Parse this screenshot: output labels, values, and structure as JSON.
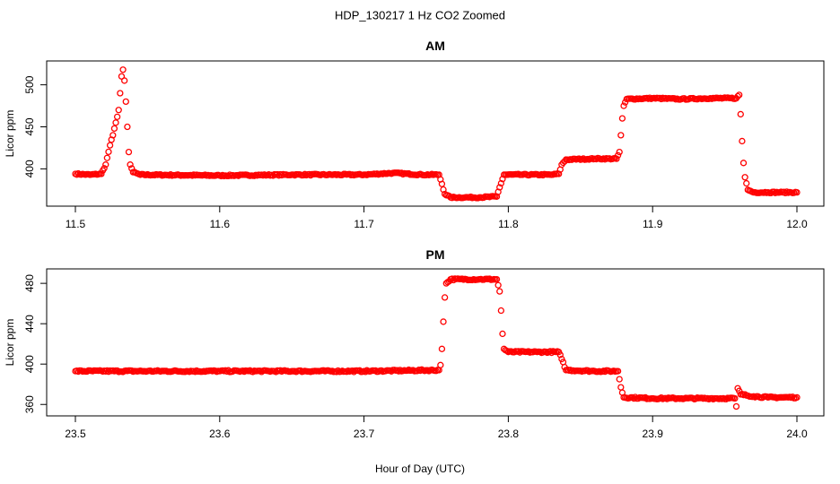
{
  "figure_title": "HDP_130217  1 Hz CO2 Zoomed",
  "colors": {
    "points": "#ff0000",
    "axes": "#000000",
    "background": "#ffffff"
  },
  "chart_data": [
    {
      "type": "scatter",
      "title": "AM",
      "xlabel": "",
      "ylabel": "Licor ppm",
      "xlim": [
        11.5,
        12.0
      ],
      "ylim": [
        362,
        522
      ],
      "x_ticks": [
        11.5,
        11.6,
        11.7,
        11.8,
        11.9,
        12.0
      ],
      "x_tick_labels": [
        "11.5",
        "11.6",
        "11.7",
        "11.8",
        "11.9",
        "12.0"
      ],
      "y_ticks": [
        400,
        450,
        500
      ],
      "y_tick_labels": [
        "400",
        "450",
        "500"
      ],
      "grid": false,
      "marker": "open-circle",
      "series": [
        {
          "color": "#ff0000",
          "points": [
            [
              11.5,
              394
            ],
            [
              11.51,
              393
            ],
            [
              11.518,
              394
            ],
            [
              11.521,
              405
            ],
            [
              11.524,
              428
            ],
            [
              11.526,
              440
            ],
            [
              11.528,
              455
            ],
            [
              11.53,
              470
            ],
            [
              11.531,
              490
            ],
            [
              11.532,
              510
            ],
            [
              11.533,
              518
            ],
            [
              11.534,
              505
            ],
            [
              11.535,
              480
            ],
            [
              11.536,
              450
            ],
            [
              11.537,
              420
            ],
            [
              11.538,
              405
            ],
            [
              11.54,
              396
            ],
            [
              11.545,
              393
            ],
            [
              11.6,
              392
            ],
            [
              11.65,
              393
            ],
            [
              11.7,
              393
            ],
            [
              11.72,
              395
            ],
            [
              11.74,
              393
            ],
            [
              11.752,
              393
            ],
            [
              11.754,
              382
            ],
            [
              11.756,
              370
            ],
            [
              11.76,
              366
            ],
            [
              11.77,
              366
            ],
            [
              11.78,
              366
            ],
            [
              11.792,
              367
            ],
            [
              11.794,
              378
            ],
            [
              11.797,
              393
            ],
            [
              11.81,
              393
            ],
            [
              11.83,
              393
            ],
            [
              11.835,
              394
            ],
            [
              11.837,
              405
            ],
            [
              11.84,
              411
            ],
            [
              11.86,
              412
            ],
            [
              11.875,
              412
            ],
            [
              11.877,
              420
            ],
            [
              11.878,
              440
            ],
            [
              11.879,
              460
            ],
            [
              11.88,
              475
            ],
            [
              11.882,
              483
            ],
            [
              11.9,
              484
            ],
            [
              11.92,
              483
            ],
            [
              11.94,
              484
            ],
            [
              11.958,
              484
            ],
            [
              11.96,
              488
            ],
            [
              11.961,
              465
            ],
            [
              11.962,
              433
            ],
            [
              11.963,
              407
            ],
            [
              11.964,
              390
            ],
            [
              11.966,
              375
            ],
            [
              11.97,
              372
            ],
            [
              11.98,
              372
            ],
            [
              11.99,
              372
            ],
            [
              12.0,
              372
            ]
          ]
        }
      ]
    },
    {
      "type": "scatter",
      "title": "PM",
      "xlabel": "Hour of Day (UTC)",
      "ylabel": "Licor ppm",
      "xlim": [
        23.5,
        24.0
      ],
      "ylim": [
        354,
        489
      ],
      "x_ticks": [
        23.5,
        23.6,
        23.7,
        23.8,
        23.9,
        24.0
      ],
      "x_tick_labels": [
        "23.5",
        "23.6",
        "23.7",
        "23.8",
        "23.9",
        "24.0"
      ],
      "y_ticks": [
        360,
        400,
        440,
        480
      ],
      "y_tick_labels": [
        "360",
        "400",
        "440",
        "480"
      ],
      "grid": false,
      "marker": "open-circle",
      "series": [
        {
          "color": "#ff0000",
          "points": [
            [
              23.5,
              393
            ],
            [
              23.55,
              393
            ],
            [
              23.6,
              393
            ],
            [
              23.65,
              393
            ],
            [
              23.7,
              393
            ],
            [
              23.752,
              394
            ],
            [
              23.753,
              399
            ],
            [
              23.754,
              415
            ],
            [
              23.755,
              442
            ],
            [
              23.756,
              466
            ],
            [
              23.757,
              480
            ],
            [
              23.76,
              484
            ],
            [
              23.78,
              484
            ],
            [
              23.792,
              484
            ],
            [
              23.794,
              472
            ],
            [
              23.795,
              453
            ],
            [
              23.796,
              430
            ],
            [
              23.797,
              415
            ],
            [
              23.8,
              412
            ],
            [
              23.82,
              412
            ],
            [
              23.835,
              412
            ],
            [
              23.837,
              405
            ],
            [
              23.84,
              394
            ],
            [
              23.86,
              393
            ],
            [
              23.876,
              393
            ],
            [
              23.877,
              385
            ],
            [
              23.878,
              377
            ],
            [
              23.88,
              367
            ],
            [
              23.9,
              366
            ],
            [
              23.92,
              366
            ],
            [
              23.94,
              366
            ],
            [
              23.957,
              366
            ],
            [
              23.958,
              358
            ],
            [
              23.959,
              376
            ],
            [
              23.961,
              370
            ],
            [
              23.97,
              368
            ],
            [
              23.98,
              367
            ],
            [
              23.99,
              367
            ],
            [
              24.0,
              367
            ]
          ]
        }
      ]
    }
  ]
}
